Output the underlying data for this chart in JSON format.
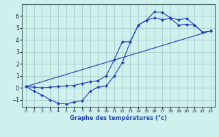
{
  "xlabel": "Graphe des températures (°c)",
  "background_color": "#cff0ec",
  "grid_color": "#aecfcb",
  "line_color": "#2244bb",
  "xlim": [
    -0.5,
    23.5
  ],
  "ylim": [
    -1.6,
    7.0
  ],
  "xticks": [
    0,
    1,
    2,
    3,
    4,
    5,
    6,
    7,
    8,
    9,
    10,
    11,
    12,
    13,
    14,
    15,
    16,
    17,
    18,
    19,
    20,
    21,
    22,
    23
  ],
  "yticks": [
    -1,
    0,
    1,
    2,
    3,
    4,
    5,
    6
  ],
  "line1_x": [
    0,
    1,
    2,
    3,
    4,
    5,
    6,
    7,
    8,
    9,
    10,
    11,
    12,
    13,
    14,
    15,
    16,
    17,
    18,
    19,
    20,
    21,
    22,
    23
  ],
  "line1_y": [
    0.1,
    -0.3,
    -0.6,
    -1.0,
    -1.3,
    -1.35,
    -1.2,
    -1.1,
    -0.3,
    0.05,
    0.15,
    1.0,
    2.1,
    3.85,
    5.25,
    5.65,
    6.35,
    6.3,
    5.85,
    5.7,
    5.8,
    5.25,
    4.65,
    4.75
  ],
  "line2_x": [
    0,
    23
  ],
  "line2_y": [
    0.1,
    4.75
  ],
  "line3_x": [
    0,
    1,
    2,
    3,
    4,
    5,
    6,
    7,
    8,
    9,
    10,
    11,
    12,
    13,
    14,
    15,
    16,
    17,
    18,
    19,
    20,
    21,
    22,
    23
  ],
  "line3_y": [
    0.1,
    0.05,
    0.0,
    0.05,
    0.1,
    0.15,
    0.2,
    0.35,
    0.5,
    0.6,
    1.0,
    2.35,
    3.85,
    3.85,
    5.25,
    5.65,
    5.85,
    5.7,
    5.8,
    5.25,
    5.3,
    5.25,
    4.65,
    4.75
  ]
}
